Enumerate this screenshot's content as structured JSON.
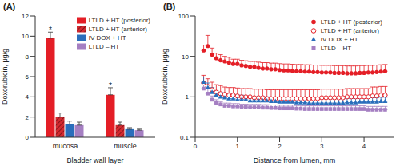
{
  "chart_data": [
    {
      "type": "bar",
      "title": "(A)",
      "categories": [
        "mucosa",
        "muscle"
      ],
      "x_label": "Bladder wall layer",
      "y_label": "Doxorubicin, μg/g",
      "ylim": [
        0,
        12
      ],
      "yticks": [
        0,
        2,
        4,
        6,
        8,
        10,
        12
      ],
      "legend": "upper right",
      "series": [
        {
          "name": "LTLD + HT (posterior)",
          "color": "#e41e26",
          "values": [
            9.8,
            4.2
          ],
          "errors": [
            0.6,
            0.7
          ],
          "annotations": [
            "*",
            "*"
          ]
        },
        {
          "name": "LTLD + HT (anterior)",
          "color": "#d42a30",
          "line_style": "hatched",
          "values": [
            2.0,
            1.2
          ],
          "errors": [
            0.4,
            0.3
          ]
        },
        {
          "name": "IV DOX + HT",
          "color": "#2a6ebb",
          "values": [
            1.3,
            0.8
          ],
          "errors": [
            0.3,
            0.15
          ]
        },
        {
          "name": "LTLD – HT",
          "color": "#a57fc2",
          "values": [
            1.2,
            0.7
          ],
          "errors": [
            0.3,
            0.1
          ]
        }
      ]
    },
    {
      "type": "scatter",
      "title": "(B)",
      "x_label": "Distance from lumen, mm",
      "y_label": "Doxorubicin, μg/g",
      "log": "y",
      "xlim": [
        0,
        4.7
      ],
      "xticks": [
        0,
        1,
        2,
        3,
        4
      ],
      "ylim": [
        0.1,
        100
      ],
      "yticks": [
        0.1,
        1,
        10,
        100
      ],
      "legend": "upper right",
      "x": [
        0.2,
        0.3,
        0.4,
        0.5,
        0.6,
        0.7,
        0.8,
        0.9,
        1.0,
        1.1,
        1.2,
        1.3,
        1.4,
        1.5,
        1.6,
        1.7,
        1.8,
        1.9,
        2.0,
        2.1,
        2.2,
        2.3,
        2.4,
        2.5,
        2.6,
        2.7,
        2.8,
        2.9,
        3.0,
        3.1,
        3.2,
        3.3,
        3.4,
        3.5,
        3.6,
        3.7,
        3.8,
        3.9,
        4.0,
        4.1,
        4.2,
        4.3,
        4.4,
        4.5
      ],
      "series": [
        {
          "name": "LTLD + HT (posterior)",
          "color": "#e41e26",
          "marker": "circle",
          "values": [
            14,
            18,
            11,
            9,
            8,
            7.5,
            7,
            6.5,
            6.5,
            6,
            5.8,
            5.5,
            5.5,
            5.2,
            5,
            5,
            4.8,
            4.8,
            4.6,
            4.5,
            4.5,
            4.4,
            4.3,
            4.3,
            4.2,
            4.2,
            4.1,
            4.1,
            4,
            4,
            4,
            3.9,
            3.9,
            3.9,
            3.8,
            3.8,
            3.8,
            3.9,
            3.9,
            4,
            4,
            4.1,
            4.2,
            4.3
          ],
          "errors": [
            5,
            15,
            5,
            3,
            3,
            2.5,
            2.5,
            2,
            2,
            2,
            2,
            2,
            2,
            2,
            2,
            2,
            2,
            2,
            2,
            2,
            2,
            2,
            2,
            2,
            2,
            2,
            2,
            2,
            2,
            2,
            2,
            2,
            2,
            2,
            2,
            2,
            2,
            2,
            2,
            2,
            2,
            2,
            2,
            2
          ]
        },
        {
          "name": "LTLD + HT (anterior)",
          "color": "#e41e26",
          "marker": "open_circle",
          "values": [
            2.2,
            1.8,
            1.5,
            1.3,
            1.2,
            1.15,
            1.1,
            1.1,
            1.05,
            1.0,
            1.0,
            1.0,
            0.95,
            0.95,
            0.95,
            0.9,
            0.9,
            0.9,
            0.9,
            0.9,
            0.9,
            0.9,
            0.9,
            0.9,
            0.9,
            0.9,
            0.9,
            0.9,
            0.95,
            0.95,
            0.95,
            0.95,
            0.95,
            0.95,
            1.0,
            1.0,
            1.0,
            1.0,
            1.0,
            1.0,
            1.05,
            1.05,
            1.1,
            1.1
          ],
          "errors": [
            1.2,
            1.0,
            0.8,
            0.7,
            0.7,
            0.6,
            0.6,
            0.6,
            0.6,
            0.6,
            0.6,
            0.6,
            0.6,
            0.6,
            0.6,
            0.6,
            0.6,
            0.6,
            0.6,
            0.6,
            0.6,
            0.6,
            0.6,
            0.6,
            0.6,
            0.6,
            0.6,
            0.6,
            0.6,
            0.6,
            0.6,
            0.6,
            0.6,
            0.6,
            0.6,
            0.6,
            0.6,
            0.6,
            0.6,
            0.6,
            0.7,
            0.7,
            0.7,
            0.7
          ]
        },
        {
          "name": "IV DOX + HT",
          "color": "#2a6ebb",
          "marker": "triangle",
          "values": [
            2.3,
            1.7,
            1.3,
            1.1,
            1.0,
            0.95,
            0.9,
            0.9,
            0.85,
            0.85,
            0.85,
            0.8,
            0.8,
            0.8,
            0.8,
            0.8,
            0.78,
            0.78,
            0.75,
            0.75,
            0.75,
            0.75,
            0.72,
            0.72,
            0.72,
            0.7,
            0.7,
            0.7,
            0.7,
            0.7,
            0.7,
            0.7,
            0.7,
            0.7,
            0.72,
            0.72,
            0.72,
            0.75,
            0.75,
            0.75,
            0.75,
            0.75,
            0.78,
            0.78
          ],
          "errors": [
            0.8,
            0.5,
            0.4,
            0.3,
            0.3,
            0.25,
            0.25,
            0.25,
            0.25,
            0.25,
            0.2,
            0.2,
            0.2,
            0.2,
            0.2,
            0.2,
            0.2,
            0.2,
            0.2,
            0.2,
            0.2,
            0.2,
            0.2,
            0.2,
            0.2,
            0.2,
            0.2,
            0.2,
            0.2,
            0.2,
            0.2,
            0.2,
            0.2,
            0.2,
            0.2,
            0.2,
            0.2,
            0.2,
            0.2,
            0.2,
            0.2,
            0.2,
            0.2,
            0.2
          ]
        },
        {
          "name": "LTLD – HT",
          "color": "#a57fc2",
          "marker": "square",
          "values": [
            1.6,
            1.2,
            0.85,
            0.7,
            0.65,
            0.6,
            0.6,
            0.58,
            0.58,
            0.56,
            0.56,
            0.55,
            0.55,
            0.55,
            0.54,
            0.54,
            0.53,
            0.53,
            0.52,
            0.52,
            0.52,
            0.52,
            0.51,
            0.51,
            0.5,
            0.5,
            0.5,
            0.5,
            0.5,
            0.5,
            0.5,
            0.5,
            0.5,
            0.5,
            0.5,
            0.5,
            0.5,
            0.5,
            0.5,
            0.48,
            0.48,
            0.48,
            0.48,
            0.48
          ],
          "errors": [
            0.6,
            0.4,
            0.2,
            0.15,
            0.1,
            0.1,
            0.1,
            0.1,
            0.1,
            0.1,
            0.1,
            0.1,
            0.1,
            0.1,
            0.1,
            0.1,
            0.1,
            0.1,
            0.1,
            0.1,
            0.1,
            0.1,
            0.1,
            0.1,
            0.1,
            0.1,
            0.1,
            0.1,
            0.1,
            0.1,
            0.1,
            0.1,
            0.1,
            0.1,
            0.1,
            0.1,
            0.1,
            0.1,
            0.1,
            0.1,
            0.1,
            0.1,
            0.1,
            0.1
          ]
        }
      ]
    }
  ]
}
